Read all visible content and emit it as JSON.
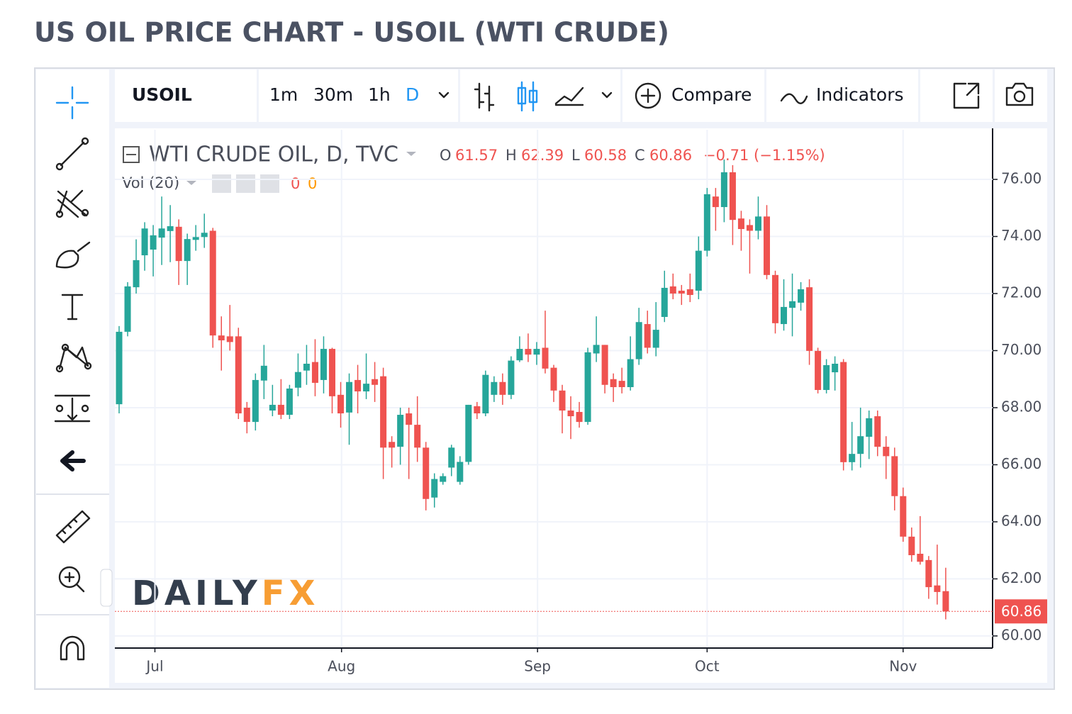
{
  "page_title": "US OIL PRICE CHART - USOIL (WTI CRUDE)",
  "toolbar": {
    "symbol": "USOIL",
    "intervals": [
      "1m",
      "30m",
      "1h",
      "D"
    ],
    "compare": "Compare",
    "indicators": "Indicators"
  },
  "legend": {
    "title": "WTI CRUDE OIL, D, TVC",
    "o_label": "O",
    "h_label": "H",
    "l_label": "L",
    "c_label": "C",
    "open": 61.57,
    "high": 62.39,
    "low": 60.58,
    "close": 60.86,
    "change": "−0.71 (−1.15%)",
    "vol_label": "Vol (20)",
    "vol_values": [
      "0",
      "0"
    ]
  },
  "watermark": {
    "part1": "DAILY",
    "part2": "FX"
  },
  "chart_data": {
    "type": "candlestick",
    "up_color": "#26a69a",
    "down_color": "#ef5350",
    "open": [
      68.12,
      70.66,
      72.22,
      73.34,
      73.54,
      73.96,
      74.19,
      74.34,
      73.14,
      73.88,
      73.98,
      74.2,
      70.53,
      70.5,
      70.5,
      68.0,
      67.5,
      68.95,
      67.9,
      68.1,
      67.75,
      68.7,
      69.3,
      69.6,
      68.97,
      70.06,
      68.45,
      67.83,
      68.97,
      68.57,
      69.0,
      69.1,
      66.8,
      66.63,
      67.8,
      67.4,
      66.6,
      64.85,
      65.4,
      65.9,
      65.4,
      66.1,
      68.05,
      67.8,
      68.45,
      68.9,
      68.45,
      69.66,
      70.06,
      69.86,
      70.1,
      69.4,
      68.6,
      67.9,
      67.85,
      67.5,
      69.9,
      70.2,
      69.0,
      68.94,
      68.72,
      69.7,
      70.93,
      70.1,
      71.18,
      72.25,
      72.1,
      72.15,
      72.1,
      73.5,
      75.4,
      75.03,
      76.25,
      74.63,
      74.4,
      74.2,
      74.7,
      72.65,
      70.93,
      71.5,
      71.68,
      72.22,
      69.99,
      68.62,
      69.24,
      69.6,
      66.09,
      66.38,
      66.98,
      67.7,
      66.63,
      66.3,
      64.9,
      63.48,
      62.88,
      62.66,
      61.77,
      61.57
    ],
    "high": [
      70.86,
      72.4,
      73.9,
      74.5,
      74.4,
      75.4,
      75.1,
      74.6,
      74.1,
      74.4,
      74.8,
      74.3,
      71.2,
      71.6,
      70.8,
      68.2,
      69.2,
      70.2,
      68.8,
      69.0,
      68.8,
      69.9,
      70.2,
      70.4,
      70.5,
      70.1,
      68.9,
      69.2,
      69.5,
      69.9,
      69.6,
      69.4,
      67.0,
      68.0,
      68.0,
      68.4,
      66.8,
      65.7,
      65.7,
      66.7,
      66.3,
      68.1,
      68.2,
      69.3,
      69.1,
      69.2,
      69.8,
      70.5,
      70.6,
      70.3,
      71.4,
      69.5,
      68.8,
      68.4,
      68.2,
      70.1,
      71.2,
      70.2,
      69.2,
      69.4,
      70.5,
      71.5,
      71.4,
      71.7,
      72.8,
      72.7,
      72.3,
      72.7,
      74.0,
      75.7,
      75.7,
      76.7,
      76.5,
      74.9,
      74.6,
      75.4,
      75.1,
      72.8,
      72.5,
      72.7,
      72.4,
      72.5,
      70.1,
      69.7,
      69.8,
      69.7,
      67.5,
      68.0,
      67.9,
      67.9,
      67.0,
      66.6,
      65.2,
      63.8,
      64.2,
      62.8,
      63.2,
      62.39
    ],
    "low": [
      67.8,
      70.5,
      72.0,
      72.8,
      72.6,
      73.0,
      73.1,
      72.3,
      72.3,
      73.5,
      73.6,
      70.1,
      69.3,
      70.0,
      67.6,
      67.1,
      67.2,
      68.3,
      67.7,
      67.6,
      67.6,
      68.4,
      68.8,
      68.4,
      68.5,
      67.8,
      67.3,
      66.7,
      67.8,
      68.3,
      68.2,
      65.5,
      65.9,
      66.0,
      65.5,
      66.1,
      64.4,
      64.5,
      65.3,
      65.6,
      65.3,
      66.0,
      67.6,
      67.7,
      68.2,
      68.1,
      68.3,
      69.6,
      69.6,
      69.5,
      69.2,
      68.2,
      67.1,
      66.9,
      67.3,
      67.4,
      69.6,
      68.5,
      68.2,
      68.5,
      68.6,
      69.5,
      69.9,
      69.8,
      71.0,
      71.8,
      71.6,
      71.7,
      71.8,
      73.3,
      74.2,
      74.5,
      73.7,
      73.5,
      72.7,
      73.9,
      72.5,
      70.6,
      70.7,
      70.5,
      71.4,
      69.5,
      68.5,
      68.5,
      68.6,
      65.8,
      65.8,
      65.9,
      66.2,
      66.3,
      65.5,
      64.4,
      63.3,
      62.6,
      62.5,
      61.3,
      61.1,
      60.58
    ],
    "close": [
      70.66,
      72.25,
      73.17,
      74.28,
      74.04,
      74.28,
      74.36,
      73.14,
      73.91,
      73.98,
      74.13,
      70.53,
      70.36,
      70.3,
      67.8,
      67.5,
      68.97,
      69.47,
      68.1,
      67.75,
      68.67,
      69.25,
      69.54,
      68.87,
      70.06,
      68.4,
      67.8,
      68.9,
      68.57,
      68.84,
      68.8,
      66.6,
      66.6,
      67.75,
      67.4,
      66.6,
      64.8,
      65.5,
      65.6,
      66.6,
      66.1,
      68.1,
      67.8,
      69.15,
      68.9,
      68.45,
      69.65,
      70.06,
      69.86,
      70.06,
      69.37,
      68.6,
      67.9,
      67.7,
      67.5,
      69.94,
      70.2,
      68.8,
      68.72,
      68.72,
      69.7,
      71.0,
      70.1,
      70.73,
      72.2,
      72.0,
      72.0,
      71.95,
      73.5,
      75.48,
      75.03,
      76.25,
      74.58,
      74.26,
      74.2,
      74.7,
      72.65,
      70.96,
      71.53,
      71.73,
      72.15,
      69.99,
      68.62,
      69.49,
      69.54,
      66.09,
      66.38,
      67.0,
      67.63,
      66.63,
      66.3,
      64.9,
      63.48,
      62.83,
      62.6,
      61.71,
      61.54,
      60.86
    ],
    "last_price": 60.86,
    "xlim": [
      -0.5,
      102.5
    ],
    "xticks": [
      {
        "value": 4.2,
        "label": "Jul"
      },
      {
        "value": 26.1,
        "label": "Aug"
      },
      {
        "value": 49.1,
        "label": "Sep"
      },
      {
        "value": 69.0,
        "label": "Oct"
      },
      {
        "value": 92.0,
        "label": "Nov"
      }
    ],
    "ylim": [
      59.6,
      77.74
    ],
    "yticks": [
      {
        "value": 60,
        "label": "60.00"
      },
      {
        "value": 62,
        "label": "62.00"
      },
      {
        "value": 64,
        "label": "64.00"
      },
      {
        "value": 66,
        "label": "66.00"
      },
      {
        "value": 68,
        "label": "68.00"
      },
      {
        "value": 70,
        "label": "70.00"
      },
      {
        "value": 72,
        "label": "72.00"
      },
      {
        "value": 74,
        "label": "74.00"
      },
      {
        "value": 76,
        "label": "76.00"
      }
    ],
    "grid": true
  }
}
